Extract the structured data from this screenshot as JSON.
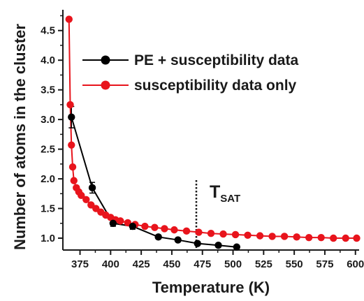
{
  "chart_data": {
    "type": "line",
    "title": "",
    "xlabel": "Temperature (K)",
    "ylabel": "Number of atoms in the cluster",
    "xlim": [
      361,
      603
    ],
    "ylim": [
      0.8,
      4.85
    ],
    "xticks": [
      375,
      400,
      425,
      450,
      475,
      500,
      525,
      550,
      575,
      600
    ],
    "yticks": [
      1.0,
      1.5,
      2.0,
      2.5,
      3.0,
      3.5,
      4.0,
      4.5
    ],
    "x_tick_labels": [
      "375",
      "400",
      "425",
      "450",
      "475",
      "500",
      "525",
      "550",
      "575",
      "600"
    ],
    "y_tick_labels": [
      "1.0",
      "1.5",
      "2.0",
      "2.5",
      "3.0",
      "3.5",
      "4.0",
      "4.5"
    ],
    "grid": false,
    "legend_position": "top-right",
    "series": [
      {
        "name": "PE + susceptibility data",
        "color": "#000000",
        "marker": "circle",
        "x": [
          368,
          385,
          402,
          418,
          439,
          455,
          471,
          488,
          503
        ],
        "y": [
          3.04,
          1.85,
          1.25,
          1.2,
          1.02,
          0.97,
          0.91,
          0.88,
          0.85
        ],
        "yerr": [
          0.18,
          0.09,
          0.05,
          0.05,
          0.03,
          0.03,
          0.03,
          0.03,
          0.03
        ]
      },
      {
        "name": "susceptibility data only",
        "color": "#e8141c",
        "marker": "circle",
        "x": [
          366,
          367,
          368,
          369,
          370,
          372,
          374,
          376,
          380,
          384,
          388,
          392,
          396,
          400,
          404,
          408,
          414,
          420,
          428,
          436,
          444,
          452,
          462,
          472,
          482,
          492,
          502,
          512,
          522,
          532,
          542,
          552,
          562,
          572,
          582,
          592,
          601
        ],
        "y": [
          4.69,
          3.25,
          2.57,
          2.2,
          1.97,
          1.85,
          1.78,
          1.72,
          1.65,
          1.56,
          1.5,
          1.44,
          1.39,
          1.35,
          1.31,
          1.29,
          1.26,
          1.23,
          1.2,
          1.18,
          1.16,
          1.14,
          1.12,
          1.1,
          1.08,
          1.07,
          1.06,
          1.05,
          1.04,
          1.03,
          1.03,
          1.02,
          1.01,
          1.01,
          1.0,
          1.0,
          1.0
        ]
      }
    ],
    "annotations": [
      {
        "text": "T",
        "subscript": "SAT",
        "x_line": 470
      }
    ]
  }
}
